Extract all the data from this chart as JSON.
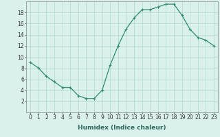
{
  "x": [
    0,
    1,
    2,
    3,
    4,
    5,
    6,
    7,
    8,
    9,
    10,
    11,
    12,
    13,
    14,
    15,
    16,
    17,
    18,
    19,
    20,
    21,
    22,
    23
  ],
  "y": [
    9,
    8,
    6.5,
    5.5,
    4.5,
    4.5,
    3,
    2.5,
    2.5,
    4,
    8.5,
    12,
    15,
    17,
    18.5,
    18.5,
    19,
    19.5,
    19.5,
    17.5,
    15,
    13.5,
    13,
    12
  ],
  "line_color": "#2e8b72",
  "marker": "+",
  "marker_color": "#2e8b72",
  "bg_color": "#daf0ea",
  "grid_color": "#b0d8d0",
  "xlabel": "Humidex (Indice chaleur)",
  "ylim": [
    0,
    20
  ],
  "xlim": [
    -0.5,
    23.5
  ],
  "yticks": [
    2,
    4,
    6,
    8,
    10,
    12,
    14,
    16,
    18
  ],
  "xticks": [
    0,
    1,
    2,
    3,
    4,
    5,
    6,
    7,
    8,
    9,
    10,
    11,
    12,
    13,
    14,
    15,
    16,
    17,
    18,
    19,
    20,
    21,
    22,
    23
  ],
  "xtick_labels": [
    "0",
    "1",
    "2",
    "3",
    "4",
    "5",
    "6",
    "7",
    "8",
    "9",
    "10",
    "11",
    "12",
    "13",
    "14",
    "15",
    "16",
    "17",
    "18",
    "19",
    "20",
    "21",
    "22",
    "23"
  ],
  "tick_fontsize": 5.5,
  "xlabel_fontsize": 6.5,
  "markersize": 3,
  "linewidth": 0.9
}
